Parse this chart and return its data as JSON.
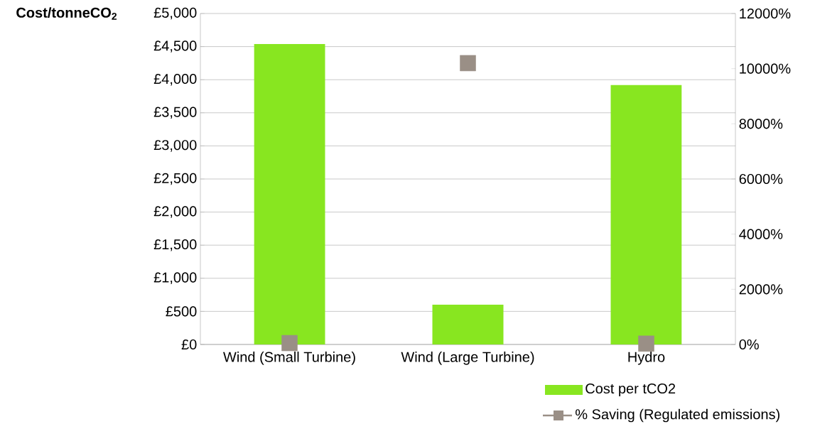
{
  "chart_data": {
    "type": "bar",
    "ylabel": "Cost/tonneCO$_{2}$",
    "categories": [
      "Wind (Small Turbine)",
      "Wind (Large Turbine)",
      "Hydro"
    ],
    "series": [
      {
        "name": "Cost per tCO2",
        "color": "#88e620",
        "values": [
          4540,
          600,
          3920
        ]
      },
      {
        "name": "% Saving (Regulated emissions)",
        "type": "scatter",
        "axis": "y2",
        "color": "#9a8f86",
        "values": [
          50,
          10200,
          30
        ]
      }
    ],
    "marker": "square",
    "ylim": [
      0,
      5000
    ],
    "yticks": [
      {
        "value": 0,
        "label": "£0"
      },
      {
        "value": 500,
        "label": "£500"
      },
      {
        "value": 1000,
        "label": "£1,000"
      },
      {
        "value": 1500,
        "label": "£1,500"
      },
      {
        "value": 2000,
        "label": "£2,000"
      },
      {
        "value": 2500,
        "label": "£2,500"
      },
      {
        "value": 3000,
        "label": "£3,000"
      },
      {
        "value": 3500,
        "label": "£3,500"
      },
      {
        "value": 4000,
        "label": "£4,000"
      },
      {
        "value": 4500,
        "label": "£4,500"
      },
      {
        "value": 5000,
        "label": "£5,000"
      }
    ],
    "y2lim": [
      0,
      12000
    ],
    "y2ticks": [
      {
        "value": 0,
        "label": "0%"
      },
      {
        "value": 2000,
        "label": "2000%"
      },
      {
        "value": 4000,
        "label": "4000%"
      },
      {
        "value": 6000,
        "label": "6000%"
      },
      {
        "value": 8000,
        "label": "8000%"
      },
      {
        "value": 10000,
        "label": "10000%"
      },
      {
        "value": 12000,
        "label": "12000%"
      }
    ],
    "grid": "y",
    "legend": "bottom right"
  }
}
